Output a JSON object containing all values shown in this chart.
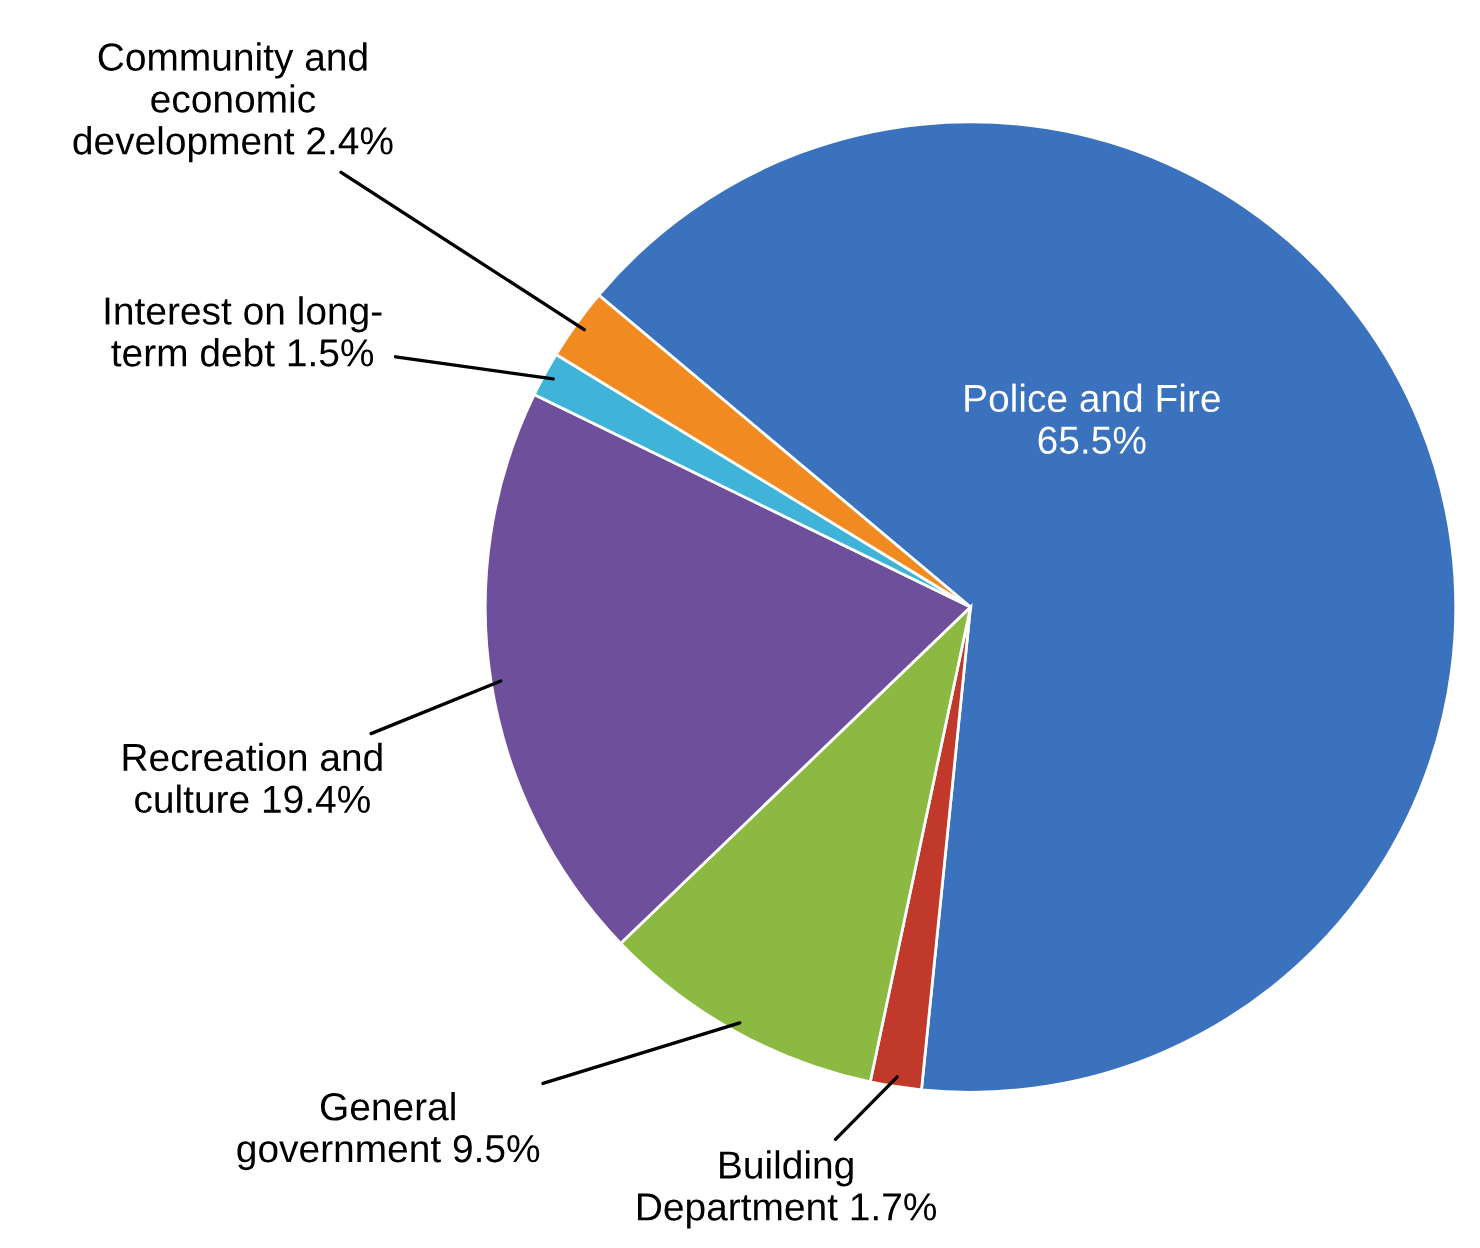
{
  "chart_data": {
    "type": "pie",
    "categories": [
      "Police and Fire",
      "Building\nDepartment",
      "General\ngovernment",
      "Recreation and\nculture",
      "Interest on long-\nterm debt",
      "Community and\neconomic\ndevelopment"
    ],
    "values": [
      65.5,
      1.7,
      9.5,
      19.4,
      1.5,
      2.4
    ],
    "value_labels": [
      "65.5%",
      "1.7%",
      "9.5%",
      "19.4%",
      "1.5%",
      "2.4%"
    ],
    "colors": [
      "#3b72bd",
      "#c0392b",
      "#8cb941",
      "#6e4f9b",
      "#3fb3d8",
      "#f28a22"
    ]
  }
}
